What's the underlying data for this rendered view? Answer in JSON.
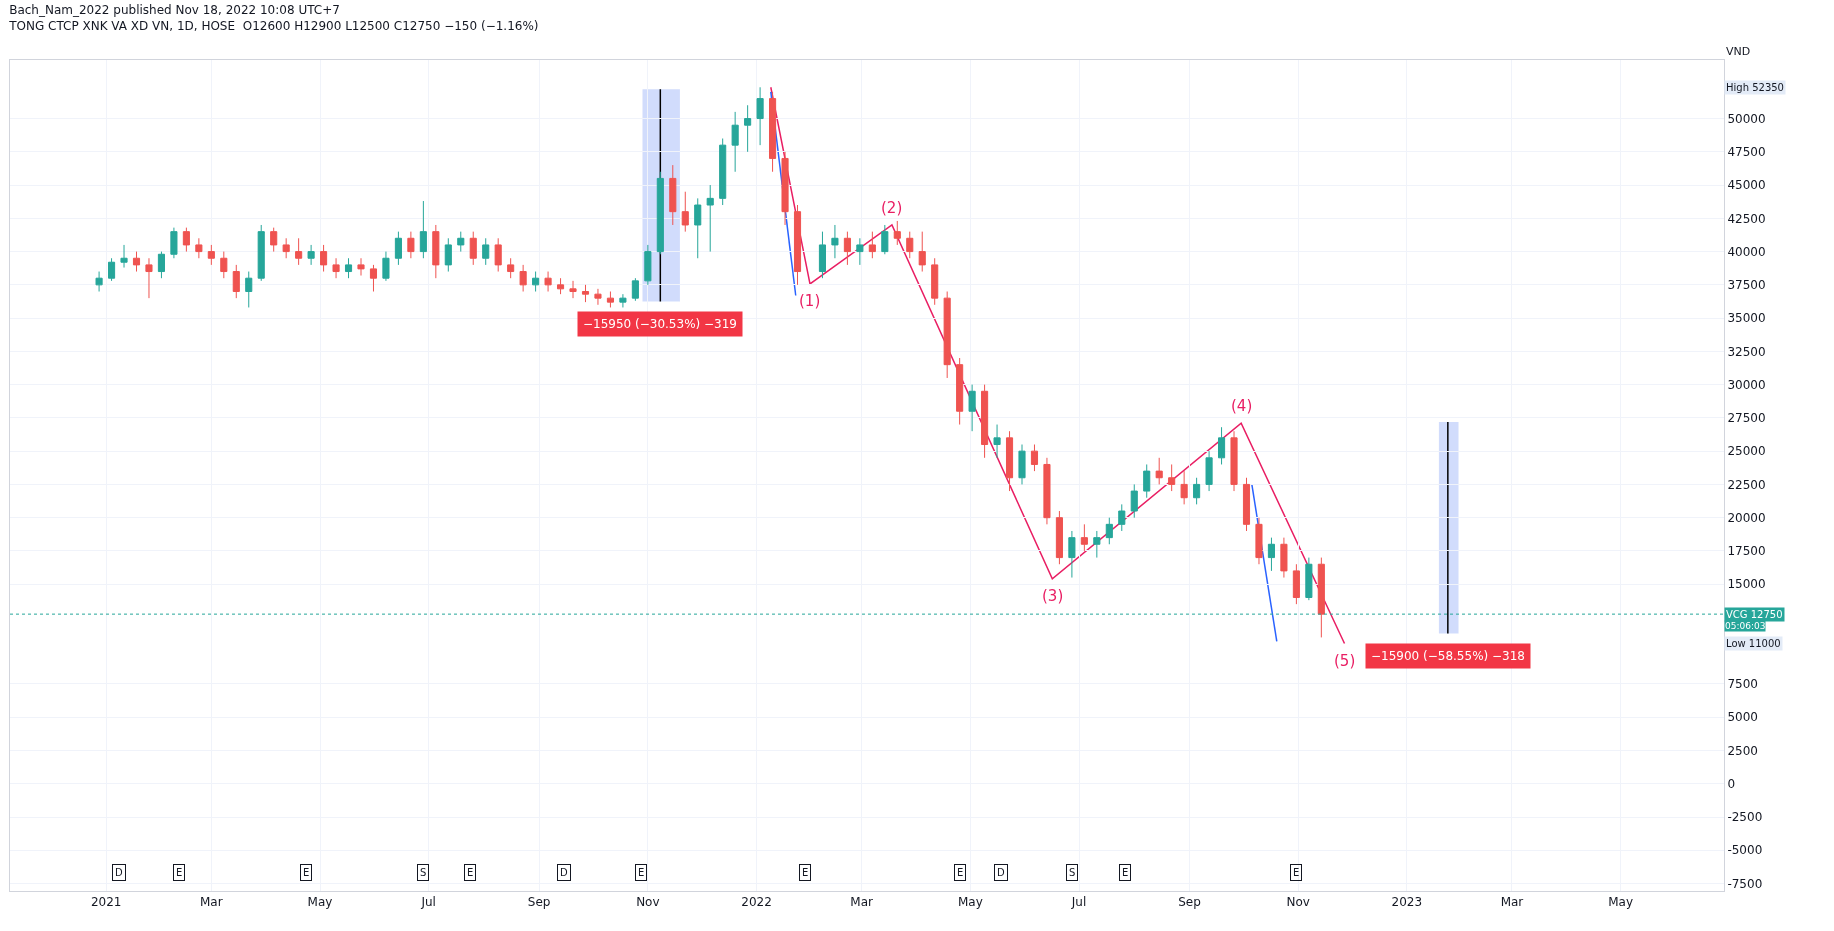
{
  "chart_data": {
    "type": "candlestick",
    "title": "TONG CTCP XNK VA XD VN, 1D, HOSE  O12600 H12900 L12500 C12750 −150 (−1.16%)",
    "subtitle": "Bach_Nam_2022 published Nov 18, 2022 10:08 UTC+7",
    "ylabel": "VND",
    "colors": [
      "#26a69a",
      "#26a69a",
      "#26a69a",
      "#ef5350",
      "#ef5350",
      "#26a69a",
      "#26a69a",
      "#ef5350",
      "#ef5350",
      "#ef5350",
      "#ef5350",
      "#ef5350",
      "#26a69a",
      "#26a69a",
      "#ef5350",
      "#ef5350",
      "#ef5350",
      "#26a69a",
      "#ef5350",
      "#ef5350",
      "#26a69a",
      "#ef5350",
      "#ef5350",
      "#26a69a",
      "#26a69a",
      "#ef5350",
      "#26a69a",
      "#ef5350",
      "#26a69a",
      "#26a69a",
      "#ef5350",
      "#26a69a",
      "#ef5350",
      "#ef5350",
      "#ef5350",
      "#26a69a",
      "#ef5350",
      "#ef5350",
      "#ef5350",
      "#ef5350",
      "#ef5350",
      "#ef5350",
      "#26a69a",
      "#26a69a",
      "#26a69a",
      "#26a69a",
      "#ef5350",
      "#ef5350",
      "#26a69a",
      "#26a69a",
      "#26a69a",
      "#26a69a",
      "#26a69a",
      "#26a69a",
      "#ef5350",
      "#ef5350",
      "#ef5350",
      "#26a69a",
      "#26a69a",
      "#ef5350",
      "#26a69a",
      "#ef5350",
      "#26a69a",
      "#ef5350",
      "#ef5350",
      "#ef5350",
      "#ef5350",
      "#ef5350",
      "#ef5350",
      "#26a69a",
      "#ef5350",
      "#26a69a",
      "#ef5350",
      "#26a69a",
      "#ef5350",
      "#ef5350",
      "#ef5350",
      "#26a69a",
      "#ef5350",
      "#26a69a",
      "#26a69a",
      "#26a69a",
      "#26a69a",
      "#26a69a",
      "#ef5350",
      "#ef5350",
      "#ef5350",
      "#26a69a",
      "#26a69a",
      "#26a69a",
      "#ef5350",
      "#ef5350",
      "#ef5350",
      "#26a69a",
      "#ef5350",
      "#ef5350",
      "#26a69a",
      "#ef5350"
    ],
    "x": [
      "2020-12-28",
      "2021-01-04",
      "2021-01-11",
      "2021-01-18",
      "2021-01-25",
      "2021-02-01",
      "2021-02-08",
      "2021-02-15",
      "2021-02-22",
      "2021-03-01",
      "2021-03-08",
      "2021-03-15",
      "2021-03-22",
      "2021-03-29",
      "2021-04-05",
      "2021-04-12",
      "2021-04-19",
      "2021-04-26",
      "2021-05-03",
      "2021-05-10",
      "2021-05-17",
      "2021-05-24",
      "2021-05-31",
      "2021-06-07",
      "2021-06-14",
      "2021-06-21",
      "2021-06-28",
      "2021-07-05",
      "2021-07-12",
      "2021-07-19",
      "2021-07-26",
      "2021-08-02",
      "2021-08-09",
      "2021-08-16",
      "2021-08-23",
      "2021-08-30",
      "2021-09-06",
      "2021-09-13",
      "2021-09-20",
      "2021-09-27",
      "2021-10-04",
      "2021-10-11",
      "2021-10-18",
      "2021-10-25",
      "2021-11-01",
      "2021-11-08",
      "2021-11-15",
      "2021-11-22",
      "2021-11-29",
      "2021-12-06",
      "2021-12-13",
      "2021-12-20",
      "2021-12-27",
      "2022-01-03",
      "2022-01-10",
      "2022-01-17",
      "2022-01-24",
      "2022-02-07",
      "2022-02-14",
      "2022-02-21",
      "2022-02-28",
      "2022-03-07",
      "2022-03-14",
      "2022-03-21",
      "2022-03-28",
      "2022-04-04",
      "2022-04-11",
      "2022-04-18",
      "2022-04-25",
      "2022-05-02",
      "2022-05-09",
      "2022-05-16",
      "2022-05-23",
      "2022-05-30",
      "2022-06-06",
      "2022-06-13",
      "2022-06-20",
      "2022-06-27",
      "2022-07-04",
      "2022-07-11",
      "2022-07-18",
      "2022-07-25",
      "2022-08-01",
      "2022-08-08",
      "2022-08-15",
      "2022-08-22",
      "2022-08-29",
      "2022-09-05",
      "2022-09-12",
      "2022-09-19",
      "2022-09-26",
      "2022-10-03",
      "2022-10-10",
      "2022-10-17",
      "2022-10-24",
      "2022-10-31",
      "2022-11-07",
      "2022-11-14"
    ],
    "ohlc": [
      [
        37500,
        38500,
        37000,
        38000
      ],
      [
        38000,
        39500,
        37800,
        39200
      ],
      [
        39200,
        40500,
        38800,
        39500
      ],
      [
        39500,
        40000,
        38500,
        39000
      ],
      [
        39000,
        39500,
        36500,
        38500
      ],
      [
        38500,
        40000,
        38000,
        39800
      ],
      [
        39800,
        41800,
        39500,
        41500
      ],
      [
        41500,
        41800,
        40000,
        40500
      ],
      [
        40500,
        41000,
        39500,
        40000
      ],
      [
        40000,
        40500,
        39000,
        39500
      ],
      [
        39500,
        40000,
        38000,
        38500
      ],
      [
        38500,
        39000,
        36500,
        37000
      ],
      [
        37000,
        38500,
        35800,
        38000
      ],
      [
        38000,
        42000,
        37800,
        41500
      ],
      [
        41500,
        41800,
        40000,
        40500
      ],
      [
        40500,
        41000,
        39500,
        40000
      ],
      [
        40000,
        41000,
        39000,
        39500
      ],
      [
        39500,
        40500,
        39000,
        40000
      ],
      [
        40000,
        40500,
        38500,
        39000
      ],
      [
        39000,
        39500,
        38000,
        38500
      ],
      [
        38500,
        39500,
        38000,
        39000
      ],
      [
        39000,
        39500,
        38200,
        38700
      ],
      [
        38700,
        39000,
        37000,
        38000
      ],
      [
        38000,
        40000,
        37800,
        39500
      ],
      [
        39500,
        41500,
        39000,
        41000
      ],
      [
        41000,
        41500,
        39500,
        40000
      ],
      [
        40000,
        43800,
        39500,
        41500
      ],
      [
        41500,
        42000,
        38000,
        39000
      ],
      [
        39000,
        41000,
        38500,
        40500
      ],
      [
        40500,
        41500,
        40000,
        41000
      ],
      [
        41000,
        41500,
        39000,
        39500
      ],
      [
        39500,
        41000,
        39000,
        40500
      ],
      [
        40500,
        41000,
        38500,
        39000
      ],
      [
        39000,
        39500,
        38000,
        38500
      ],
      [
        38500,
        39000,
        37000,
        37500
      ],
      [
        37500,
        38500,
        37000,
        38000
      ],
      [
        38000,
        38500,
        37000,
        37500
      ],
      [
        37500,
        38000,
        36800,
        37200
      ],
      [
        37200,
        37800,
        36500,
        37000
      ],
      [
        37000,
        37500,
        36200,
        36800
      ],
      [
        36800,
        37200,
        36000,
        36500
      ],
      [
        36500,
        37000,
        35800,
        36200
      ],
      [
        36200,
        36800,
        35800,
        36500
      ],
      [
        36500,
        38000,
        36300,
        37800
      ],
      [
        37800,
        40500,
        37500,
        40000
      ],
      [
        40000,
        46000,
        39800,
        45500
      ],
      [
        45500,
        46500,
        42000,
        43000
      ],
      [
        43000,
        44500,
        41500,
        42000
      ],
      [
        42000,
        44000,
        39500,
        43500
      ],
      [
        43500,
        45000,
        40000,
        44000
      ],
      [
        44000,
        48500,
        43500,
        48000
      ],
      [
        48000,
        50500,
        46000,
        49500
      ],
      [
        49500,
        51000,
        47500,
        50000
      ],
      [
        50000,
        52350,
        48000,
        51500
      ],
      [
        51500,
        52000,
        46000,
        47000
      ],
      [
        47000,
        47500,
        42000,
        43000
      ],
      [
        43000,
        43500,
        37500,
        38500
      ],
      [
        38500,
        41500,
        38000,
        40500
      ],
      [
        40500,
        42000,
        39500,
        41000
      ],
      [
        41000,
        41500,
        39000,
        40000
      ],
      [
        40000,
        41000,
        39000,
        40500
      ],
      [
        40500,
        41500,
        39500,
        40000
      ],
      [
        40000,
        42000,
        39800,
        41500
      ],
      [
        41500,
        42300,
        40500,
        41000
      ],
      [
        41000,
        41500,
        39500,
        40000
      ],
      [
        40000,
        41500,
        38500,
        39000
      ],
      [
        39000,
        39500,
        36000,
        36500
      ],
      [
        36500,
        37000,
        30500,
        31500
      ],
      [
        31500,
        32000,
        27000,
        28000
      ],
      [
        28000,
        30000,
        26500,
        29500
      ],
      [
        29500,
        30000,
        24500,
        25500
      ],
      [
        25500,
        27000,
        24500,
        26000
      ],
      [
        26000,
        26500,
        22000,
        23000
      ],
      [
        23000,
        25500,
        22500,
        25000
      ],
      [
        25000,
        25500,
        23500,
        24000
      ],
      [
        24000,
        24500,
        19500,
        20000
      ],
      [
        20000,
        20500,
        16500,
        17000
      ],
      [
        17000,
        19000,
        15500,
        18500
      ],
      [
        18500,
        19500,
        17500,
        18000
      ],
      [
        18000,
        19000,
        17000,
        18500
      ],
      [
        18500,
        20000,
        18000,
        19500
      ],
      [
        19500,
        21000,
        19000,
        20500
      ],
      [
        20500,
        22500,
        20000,
        22000
      ],
      [
        22000,
        24000,
        21500,
        23500
      ],
      [
        23500,
        24500,
        22500,
        23000
      ],
      [
        23000,
        24000,
        22000,
        22500
      ],
      [
        22500,
        23500,
        21000,
        21500
      ],
      [
        21500,
        23000,
        21000,
        22500
      ],
      [
        22500,
        25000,
        22000,
        24500
      ],
      [
        24500,
        26800,
        24000,
        26000
      ],
      [
        26000,
        26500,
        22000,
        22500
      ],
      [
        22500,
        23000,
        19000,
        19500
      ],
      [
        19500,
        20000,
        16500,
        17000
      ],
      [
        17000,
        18500,
        16000,
        18000
      ],
      [
        18000,
        18500,
        15500,
        16000
      ],
      [
        16000,
        16500,
        13500,
        14000
      ],
      [
        14000,
        17000,
        13800,
        16500
      ],
      [
        16500,
        17000,
        11000,
        12750
      ]
    ],
    "series": [
      {
        "type": "line",
        "color": "#e91e63",
        "x": [
          "2022-01-09",
          "2022-01-31",
          "2022-03-18",
          "2022-06-16",
          "2022-09-30",
          "2022-11-27"
        ],
        "values": [
          52350,
          37570,
          42000,
          15400,
          27100,
          10540
        ]
      },
      {
        "type": "line",
        "color": "#2962ff",
        "x": [
          "2022-01-09",
          "2022-01-23"
        ],
        "values": [
          52000,
          36700
        ]
      },
      {
        "type": "line",
        "color": "#2962ff",
        "x": [
          "2022-10-06",
          "2022-10-20"
        ],
        "values": [
          22500,
          10700
        ]
      },
      {
        "type": "line",
        "color": "#000000",
        "x": [
          "2021-11-08",
          "2021-11-08"
        ],
        "values": [
          52200,
          36250
        ]
      },
      {
        "type": "line",
        "color": "#000000",
        "x": [
          "2023-01-24",
          "2023-01-24"
        ],
        "values": [
          27200,
          11300
        ]
      },
      {
        "type": "line",
        "color": "#c5d3fb",
        "x": [
          "2021-10-29",
          "2021-11-19"
        ],
        "values": [
          null,
          null
        ],
        "lower": [
          36250,
          36250
        ],
        "upper": [
          52200,
          52200
        ]
      },
      {
        "type": "line",
        "color": "#c5d3fb",
        "x": [
          "2023-01-19",
          "2023-01-30"
        ],
        "values": [
          null,
          null
        ],
        "lower": [
          11300,
          11300
        ],
        "upper": [
          27200,
          27200
        ]
      }
    ],
    "ref_lines": [
      {
        "axis": "y",
        "value": 12750,
        "label": "VCG 12750",
        "color": "#26a69a",
        "line_style": "dotted"
      }
    ],
    "annotations": [
      {
        "text": "(1)",
        "x": "2022-01-31",
        "y": 37570
      },
      {
        "text": "(2)",
        "x": "2022-03-18",
        "y": 42000
      },
      {
        "text": "(3)",
        "x": "2022-06-16",
        "y": 15400
      },
      {
        "text": "(4)",
        "x": "2022-09-30",
        "y": 27100
      },
      {
        "text": "(5)",
        "x": "2022-11-27",
        "y": 10540
      },
      {
        "text": "−15950 (−30.53%) −319",
        "x": "2021-11-08",
        "y": 36250
      },
      {
        "text": "−15900 (−58.55%) −318",
        "x": "2023-01-24",
        "y": 11300
      },
      "05:06:03",
      "High 52350",
      "Low 11000",
      {
        "text": "D",
        "x": "2021-01-08",
        "y": -6700
      },
      {
        "text": "E",
        "x": "2021-02-11",
        "y": -6700
      },
      {
        "text": "E",
        "x": "2021-04-23",
        "y": -6700
      },
      {
        "text": "S",
        "x": "2021-06-28",
        "y": -6700
      },
      {
        "text": "E",
        "x": "2021-07-24",
        "y": -6700
      },
      {
        "text": "D",
        "x": "2021-09-15",
        "y": -6700
      },
      {
        "text": "E",
        "x": "2021-10-28",
        "y": -6700
      },
      {
        "text": "E",
        "x": "2022-01-28",
        "y": -6700
      },
      {
        "text": "E",
        "x": "2022-04-25",
        "y": -6700
      },
      {
        "text": "D",
        "x": "2022-05-18",
        "y": -6700
      },
      {
        "text": "S",
        "x": "2022-06-27",
        "y": -6700
      },
      {
        "text": "E",
        "x": "2022-07-27",
        "y": -6700
      },
      {
        "text": "E",
        "x": "2022-10-31",
        "y": -6700
      }
    ],
    "xlim": [
      "2020-11-08",
      "2023-06-28"
    ],
    "xticks": [
      {
        "value": "2021-01-01",
        "label": "2021"
      },
      {
        "value": "2021-03-01",
        "label": "Mar"
      },
      {
        "value": "2021-05-01",
        "label": "May"
      },
      {
        "value": "2021-07-01",
        "label": "Jul"
      },
      {
        "value": "2021-09-01",
        "label": "Sep"
      },
      {
        "value": "2021-11-01",
        "label": "Nov"
      },
      {
        "value": "2022-01-01",
        "label": "2022"
      },
      {
        "value": "2022-03-01",
        "label": "Mar"
      },
      {
        "value": "2022-05-01",
        "label": "May"
      },
      {
        "value": "2022-07-01",
        "label": "Jul"
      },
      {
        "value": "2022-09-01",
        "label": "Sep"
      },
      {
        "value": "2022-11-01",
        "label": "Nov"
      },
      {
        "value": "2023-01-01",
        "label": "2023"
      },
      {
        "value": "2023-03-01",
        "label": "Mar"
      },
      {
        "value": "2023-05-01",
        "label": "May"
      }
    ],
    "ylim": [
      -8060,
      54400
    ],
    "yticks": [
      -7500,
      -5000,
      -2500,
      0,
      2500,
      5000,
      7500,
      15000,
      17500,
      20000,
      22500,
      25000,
      27500,
      30000,
      32500,
      35000,
      37500,
      40000,
      42500,
      45000,
      47500,
      50000
    ],
    "grid": true
  }
}
